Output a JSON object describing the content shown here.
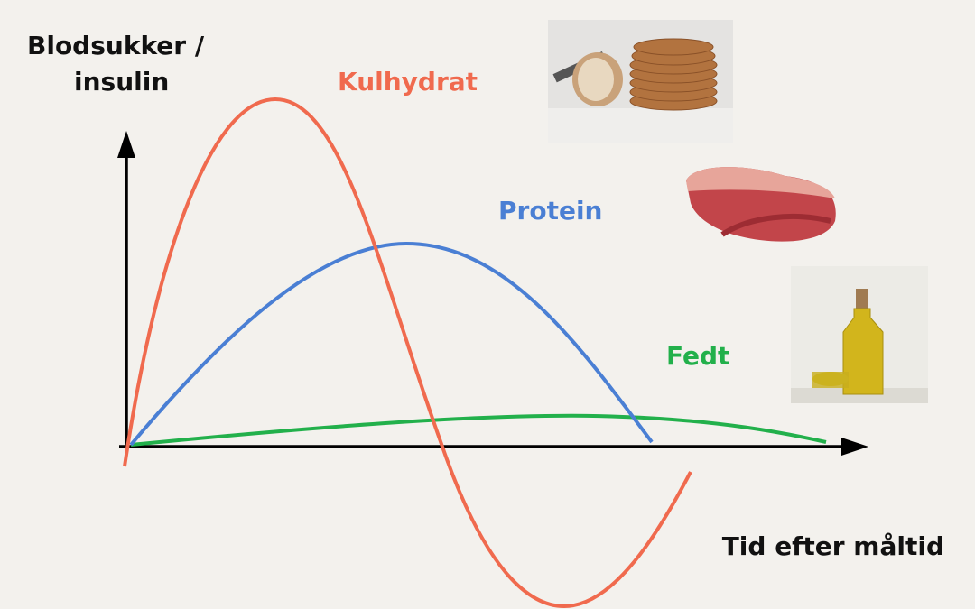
{
  "y_axis_label": [
    "Blodsukker /",
    "insulin"
  ],
  "x_axis_label": "Tid efter måltid",
  "curves": [
    {
      "label": "Kulhydrat",
      "color": "#f06a4e"
    },
    {
      "label": "Protein",
      "color": "#4a7fd4"
    },
    {
      "label": "Fedt",
      "color": "#22b04b"
    }
  ]
}
